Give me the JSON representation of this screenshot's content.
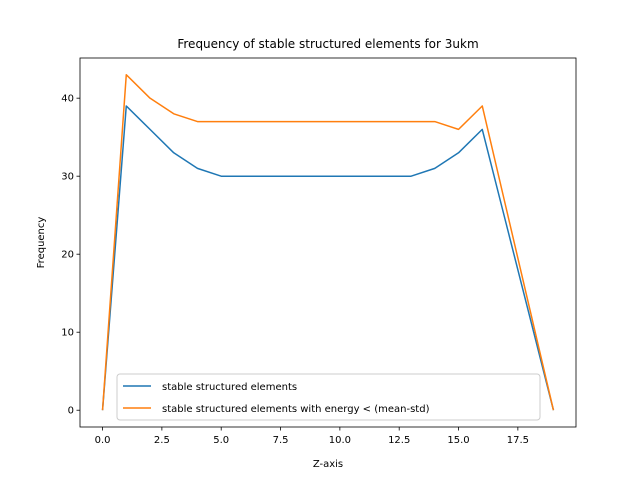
{
  "chart_data": {
    "type": "line",
    "title": "Frequency of stable structured elements for 3ukm",
    "xlabel": "Z-axis",
    "ylabel": "Frequency",
    "xlim": [
      -0.95,
      19.95
    ],
    "ylim": [
      -2.15,
      45.15
    ],
    "xticks": [
      0.0,
      2.5,
      5.0,
      7.5,
      10.0,
      12.5,
      15.0,
      17.5
    ],
    "xtick_labels": [
      "0.0",
      "2.5",
      "5.0",
      "7.5",
      "10.0",
      "12.5",
      "15.0",
      "17.5"
    ],
    "yticks": [
      0,
      10,
      20,
      30,
      40
    ],
    "ytick_labels": [
      "0",
      "10",
      "20",
      "30",
      "40"
    ],
    "x": [
      0,
      1,
      2,
      3,
      4,
      5,
      6,
      7,
      8,
      9,
      10,
      11,
      12,
      13,
      14,
      15,
      16,
      17,
      18,
      19
    ],
    "series": [
      {
        "name": "stable structured elements",
        "color": "#1f77b4",
        "values": [
          0,
          39,
          36,
          33,
          31,
          30,
          30,
          30,
          30,
          30,
          30,
          30,
          30,
          30,
          31,
          33,
          36,
          24,
          12,
          0
        ]
      },
      {
        "name": "stable structured elements with energy < (mean-std)",
        "color": "#ff7f0e",
        "values": [
          0,
          43,
          40,
          38,
          37,
          37,
          37,
          37,
          37,
          37,
          37,
          37,
          37,
          37,
          37,
          36,
          39,
          26,
          13,
          0
        ]
      }
    ],
    "legend_position": "lower-center",
    "grid": false
  }
}
